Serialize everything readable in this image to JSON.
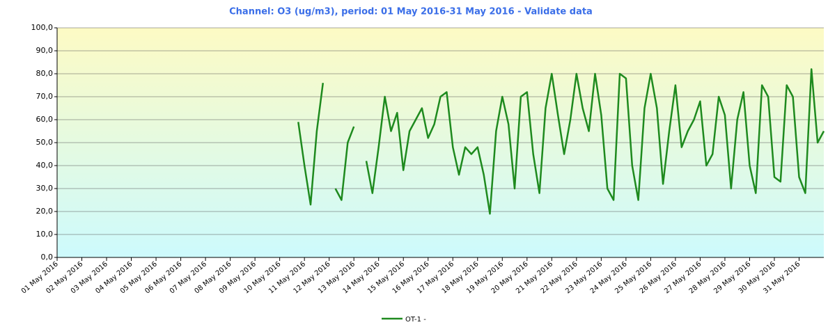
{
  "chart_data": {
    "type": "line",
    "title": "Channel: O3 (ug/m3), period: 01 May 2016-31 May 2016 - Validate data",
    "x": [
      9.75,
      10,
      10.25,
      10.5,
      10.75,
      11,
      11.25,
      11.5,
      11.75,
      12,
      12.25,
      12.5,
      12.75,
      13,
      13.25,
      13.5,
      13.75,
      14,
      14.25,
      14.5,
      14.75,
      15,
      15.25,
      15.5,
      15.75,
      16,
      16.25,
      16.5,
      16.75,
      17,
      17.25,
      17.5,
      17.75,
      18,
      18.25,
      18.5,
      18.75,
      19,
      19.25,
      19.5,
      19.75,
      20,
      20.25,
      20.5,
      20.75,
      21,
      21.25,
      21.5,
      21.75,
      22,
      22.25,
      22.5,
      22.75,
      23,
      23.25,
      23.5,
      23.75,
      24,
      24.25,
      24.5,
      24.75,
      25,
      25.25,
      25.5,
      25.75,
      26,
      26.25,
      26.5,
      26.75,
      27,
      27.25,
      27.5,
      27.75,
      28,
      28.25,
      28.5,
      28.75,
      29,
      29.25,
      29.5,
      29.75,
      30,
      30.25,
      30.5,
      30.75,
      31
    ],
    "series": [
      {
        "name": "OT-1 -",
        "color": "#1e8a1e",
        "values": [
          59,
          40,
          23,
          55,
          76,
          null,
          30,
          25,
          50,
          57,
          null,
          42,
          28,
          48,
          70,
          55,
          63,
          38,
          55,
          60,
          65,
          52,
          58,
          70,
          72,
          48,
          36,
          48,
          45,
          48,
          36,
          19,
          55,
          70,
          58,
          30,
          70,
          72,
          45,
          28,
          65,
          80,
          62,
          45,
          60,
          80,
          65,
          55,
          80,
          62,
          30,
          25,
          80,
          78,
          40,
          25,
          65,
          80,
          65,
          32,
          55,
          75,
          48,
          55,
          60,
          68,
          40,
          45,
          70,
          62,
          30,
          60,
          72,
          40,
          28,
          75,
          70,
          35,
          33,
          75,
          70,
          35,
          28,
          82,
          50,
          55
        ]
      }
    ],
    "xlim": [
      0,
      31
    ],
    "xticks": [
      {
        "value": 0,
        "label": "01 May 2016"
      },
      {
        "value": 1,
        "label": "02 May 2016"
      },
      {
        "value": 2,
        "label": "03 May 2016"
      },
      {
        "value": 3,
        "label": "04 May 2016"
      },
      {
        "value": 4,
        "label": "05 May 2016"
      },
      {
        "value": 5,
        "label": "06 May 2016"
      },
      {
        "value": 6,
        "label": "07 May 2016"
      },
      {
        "value": 7,
        "label": "08 May 2016"
      },
      {
        "value": 8,
        "label": "09 May 2016"
      },
      {
        "value": 9,
        "label": "10 May 2016"
      },
      {
        "value": 10,
        "label": "11 May 2016"
      },
      {
        "value": 11,
        "label": "12 May 2016"
      },
      {
        "value": 12,
        "label": "13 May 2016"
      },
      {
        "value": 13,
        "label": "14 May 2016"
      },
      {
        "value": 14,
        "label": "15 May 2016"
      },
      {
        "value": 15,
        "label": "16 May 2016"
      },
      {
        "value": 16,
        "label": "17 May 2016"
      },
      {
        "value": 17,
        "label": "18 May 2016"
      },
      {
        "value": 18,
        "label": "19 May 2016"
      },
      {
        "value": 19,
        "label": "20 May 2016"
      },
      {
        "value": 20,
        "label": "21 May 2016"
      },
      {
        "value": 21,
        "label": "22 May 2016"
      },
      {
        "value": 22,
        "label": "23 May 2016"
      },
      {
        "value": 23,
        "label": "24 May 2016"
      },
      {
        "value": 24,
        "label": "25 May 2016"
      },
      {
        "value": 25,
        "label": "26 May 2016"
      },
      {
        "value": 26,
        "label": "27 May 2016"
      },
      {
        "value": 27,
        "label": "28 May 2016"
      },
      {
        "value": 28,
        "label": "29 May 2016"
      },
      {
        "value": 29,
        "label": "30 May 2016"
      },
      {
        "value": 30,
        "label": "31 May 2016"
      }
    ],
    "ylim": [
      0,
      100
    ],
    "yticks": [
      {
        "value": 0,
        "label": "0,0"
      },
      {
        "value": 10,
        "label": "10,0"
      },
      {
        "value": 20,
        "label": "20,0"
      },
      {
        "value": 30,
        "label": "30,0"
      },
      {
        "value": 40,
        "label": "40,0"
      },
      {
        "value": 50,
        "label": "50,0"
      },
      {
        "value": 60,
        "label": "60,0"
      },
      {
        "value": 70,
        "label": "70,0"
      },
      {
        "value": 80,
        "label": "80,0"
      },
      {
        "value": 90,
        "label": "90,0"
      },
      {
        "value": 100,
        "label": "100,0"
      }
    ],
    "grid": true
  }
}
